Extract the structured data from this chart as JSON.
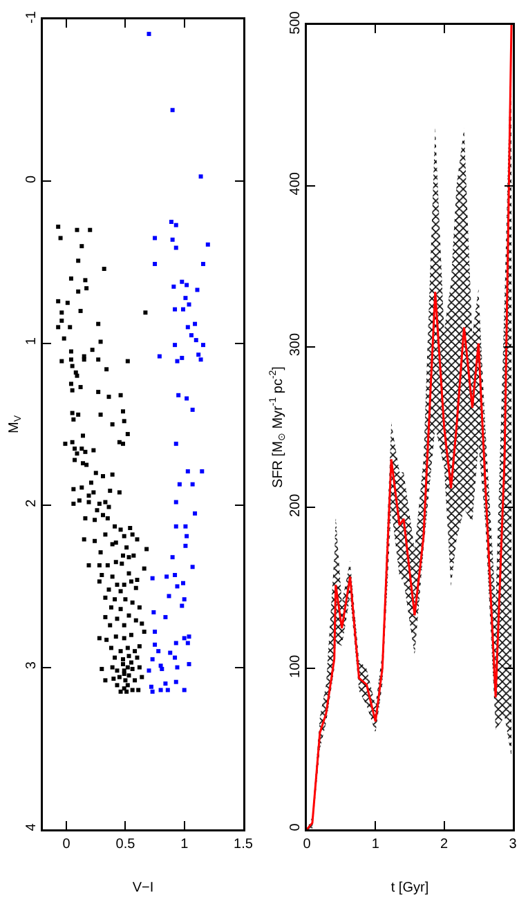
{
  "chart_data": [
    {
      "type": "scatter",
      "xlabel": "V−I",
      "ylabel": "M$_{V}$",
      "xlim": [
        -0.2,
        1.5
      ],
      "xticks": [
        0,
        0.5,
        1,
        1.5
      ],
      "ylim": [
        4,
        -1
      ],
      "yticks": [
        -1,
        0,
        1,
        2,
        3,
        4
      ],
      "marker": "square",
      "grid": false,
      "series": [
        {
          "color": "#000000",
          "x": [
            -0.07,
            -0.05,
            0.09,
            0.2,
            0.13,
            0.1,
            0.32,
            0.04,
            0.16,
            0.17,
            0.1,
            -0.07,
            0.01,
            -0.04,
            0.12,
            0.67,
            -0.04,
            -0.07,
            0.03,
            0.27,
            -0.02,
            0.29,
            0.04,
            0.22,
            0.15,
            0.15,
            0.04,
            -0.04,
            0.27,
            0.52,
            0.05,
            0.08,
            0.09,
            0.34,
            0.04,
            0.12,
            0.05,
            0.27,
            0.36,
            0.46,
            0.05,
            0.1,
            0.29,
            0.48,
            0.06,
            0.49,
            0.39,
            0.52,
            0.14,
            -0.01,
            0.05,
            0.45,
            0.48,
            0.07,
            0.13,
            0.23,
            0.09,
            0.16,
            0.07,
            0.14,
            0.17,
            0.25,
            0.31,
            0.39,
            0.21,
            0.06,
            0.13,
            0.37,
            0.45,
            0.19,
            0.23,
            0.06,
            0.11,
            0.19,
            0.28,
            0.33,
            0.36,
            0.26,
            0.31,
            0.16,
            0.24,
            0.35,
            0.41,
            0.46,
            0.54,
            0.33,
            0.49,
            0.56,
            0.15,
            0.24,
            0.39,
            0.42,
            0.6,
            0.51,
            0.68,
            0.29,
            0.48,
            0.53,
            0.57,
            0.19,
            0.28,
            0.35,
            0.42,
            0.47,
            0.66,
            0.3,
            0.39,
            0.53,
            0.6,
            0.28,
            0.43,
            0.49,
            0.55,
            0.36,
            0.46,
            0.59,
            0.33,
            0.41,
            0.5,
            0.56,
            0.38,
            0.46,
            0.62,
            0.33,
            0.43,
            0.53,
            0.59,
            0.37,
            0.49,
            0.64,
            0.28,
            0.34,
            0.42,
            0.49,
            0.55,
            0.66,
            0.38,
            0.46,
            0.52,
            0.58,
            0.62,
            0.41,
            0.48,
            0.53,
            0.6,
            0.3,
            0.39,
            0.43,
            0.49,
            0.52,
            0.56,
            0.62,
            0.33,
            0.4,
            0.45,
            0.5,
            0.53,
            0.58,
            0.64,
            0.43,
            0.49,
            0.52,
            0.56,
            0.61,
            0.46,
            0.51,
            0.49,
            0.48,
            0.55
          ],
          "values": [
            0.28,
            0.35,
            0.3,
            0.3,
            0.4,
            0.49,
            0.54,
            0.6,
            0.61,
            0.66,
            0.68,
            0.74,
            0.75,
            0.81,
            0.8,
            0.81,
            0.86,
            0.9,
            0.9,
            0.88,
            0.97,
            0.99,
            1.05,
            1.04,
            1.08,
            1.1,
            1.1,
            1.11,
            1.1,
            1.11,
            1.14,
            1.18,
            1.2,
            1.16,
            1.25,
            1.27,
            1.29,
            1.3,
            1.33,
            1.32,
            1.43,
            1.44,
            1.44,
            1.42,
            1.47,
            1.48,
            1.5,
            1.56,
            1.57,
            1.62,
            1.61,
            1.61,
            1.62,
            1.65,
            1.65,
            1.66,
            1.68,
            1.67,
            1.72,
            1.74,
            1.75,
            1.8,
            1.82,
            1.81,
            1.86,
            1.9,
            1.89,
            1.91,
            1.92,
            1.94,
            1.92,
            1.99,
            1.97,
            1.98,
            1.99,
            1.98,
            2.01,
            2.03,
            2.06,
            2.08,
            2.09,
            2.08,
            2.13,
            2.15,
            2.14,
            2.18,
            2.19,
            2.18,
            2.21,
            2.22,
            2.24,
            2.23,
            2.21,
            2.26,
            2.27,
            2.29,
            2.31,
            2.32,
            2.31,
            2.37,
            2.37,
            2.37,
            2.35,
            2.36,
            2.39,
            2.43,
            2.44,
            2.42,
            2.46,
            2.47,
            2.49,
            2.49,
            2.47,
            2.52,
            2.53,
            2.51,
            2.57,
            2.58,
            2.58,
            2.6,
            2.63,
            2.64,
            2.63,
            2.69,
            2.7,
            2.68,
            2.71,
            2.74,
            2.74,
            2.73,
            2.82,
            2.83,
            2.81,
            2.82,
            2.8,
            2.78,
            2.88,
            2.9,
            2.88,
            2.9,
            2.87,
            2.94,
            2.95,
            2.93,
            2.94,
            3.01,
            3,
            3.02,
            3.02,
            3,
            3.01,
            3,
            3.08,
            3.07,
            3.06,
            3.08,
            3.05,
            3.08,
            3.06,
            3.11,
            3.13,
            3.11,
            3.14,
            3.14,
            3.15,
            3.15,
            3.04,
            2.98,
            2.97
          ]
        },
        {
          "color": "#0000ff",
          "x": [
            0.7,
            0.9,
            1.14,
            0.89,
            0.93,
            0.75,
            0.9,
            0.93,
            1.2,
            0.75,
            1.16,
            0.91,
            0.98,
            1.02,
            1.11,
            1.01,
            1.04,
            0.92,
            0.99,
            1.03,
            1.09,
            1.06,
            1.1,
            0.92,
            1.16,
            0.79,
            0.94,
            0.98,
            1.12,
            1.14,
            0.95,
            1.02,
            1.07,
            0.93,
            1.03,
            1.15,
            0.96,
            1.07,
            0.93,
            1.09,
            0.93,
            1.01,
            1.02,
            1.01,
            0.9,
            1.07,
            0.73,
            0.85,
            0.92,
            0.94,
            0.99,
            0.87,
            1,
            0.98,
            0.74,
            0.84,
            0.75,
            0.75,
            1,
            1.04,
            1.03,
            0.93,
            0.78,
            0.88,
            0.73,
            0.92,
            0.8,
            1.04,
            0.81,
            0.7,
            0.94,
            0.93,
            0.84,
            0.86,
            0.72,
            0.73,
            0.8,
            1
          ],
          "values": [
            -0.91,
            -0.44,
            -0.03,
            0.25,
            0.27,
            0.35,
            0.36,
            0.41,
            0.39,
            0.51,
            0.51,
            0.65,
            0.62,
            0.64,
            0.67,
            0.72,
            0.76,
            0.79,
            0.79,
            0.9,
            0.88,
            0.95,
            0.98,
            1.01,
            1.01,
            1.08,
            1.11,
            1.09,
            1.07,
            1.1,
            1.32,
            1.34,
            1.41,
            1.62,
            1.79,
            1.79,
            1.87,
            1.87,
            1.98,
            2.05,
            2.13,
            2.13,
            2.19,
            2.25,
            2.32,
            2.38,
            2.45,
            2.44,
            2.43,
            2.5,
            2.48,
            2.56,
            2.58,
            2.62,
            2.66,
            2.69,
            2.78,
            2.86,
            2.82,
            2.81,
            2.85,
            2.85,
            2.9,
            2.91,
            2.95,
            2.94,
            2.99,
            2.98,
            3.01,
            3.02,
            3,
            3.09,
            3.1,
            3.14,
            3.12,
            3.15,
            3.14,
            3.14
          ]
        }
      ]
    },
    {
      "type": "line",
      "xlabel": "t [Gyr]",
      "ylabel": "SFR [M$_{⊙}$ Myr$^{-1}$ pc$^{-2}$]",
      "xlim": [
        0,
        3
      ],
      "xticks": [
        0,
        1,
        2,
        3
      ],
      "ylim": [
        0,
        500
      ],
      "yticks": [
        0,
        100,
        200,
        300,
        400,
        500
      ],
      "grid": false,
      "line_style": "solid",
      "series": [
        {
          "color": "#ff0000",
          "x": [
            0,
            0.08,
            0.19,
            0.28,
            0.4,
            0.42,
            0.51,
            0.63,
            0.76,
            0.87,
            1,
            1.1,
            1.23,
            1.35,
            1.41,
            1.57,
            1.7,
            1.87,
            2,
            2.1,
            2.18,
            2.29,
            2.41,
            2.5,
            2.6,
            2.75,
            2.88,
            2.98
          ],
          "values": [
            0,
            4,
            60,
            72,
            106,
            152,
            125,
            157,
            94,
            90,
            67,
            100,
            230,
            189,
            193,
            133,
            182,
            334,
            250,
            212,
            250,
            312,
            262,
            302,
            215,
            82,
            230,
            500
          ],
          "upper": [
            0,
            8,
            70,
            90,
            170,
            195,
            141,
            167,
            105,
            100,
            77,
            110,
            253,
            222,
            222,
            174,
            230,
            437,
            310,
            340,
            400,
            436,
            307,
            336,
            250,
            140,
            330,
            500
          ],
          "lower": [
            0,
            0,
            50,
            66,
            100,
            116,
            114,
            145,
            86,
            77,
            60,
            90,
            199,
            157,
            154,
            108,
            174,
            250,
            225,
            151,
            180,
            199,
            191,
            239,
            190,
            62,
            70,
            45
          ]
        }
      ]
    }
  ]
}
